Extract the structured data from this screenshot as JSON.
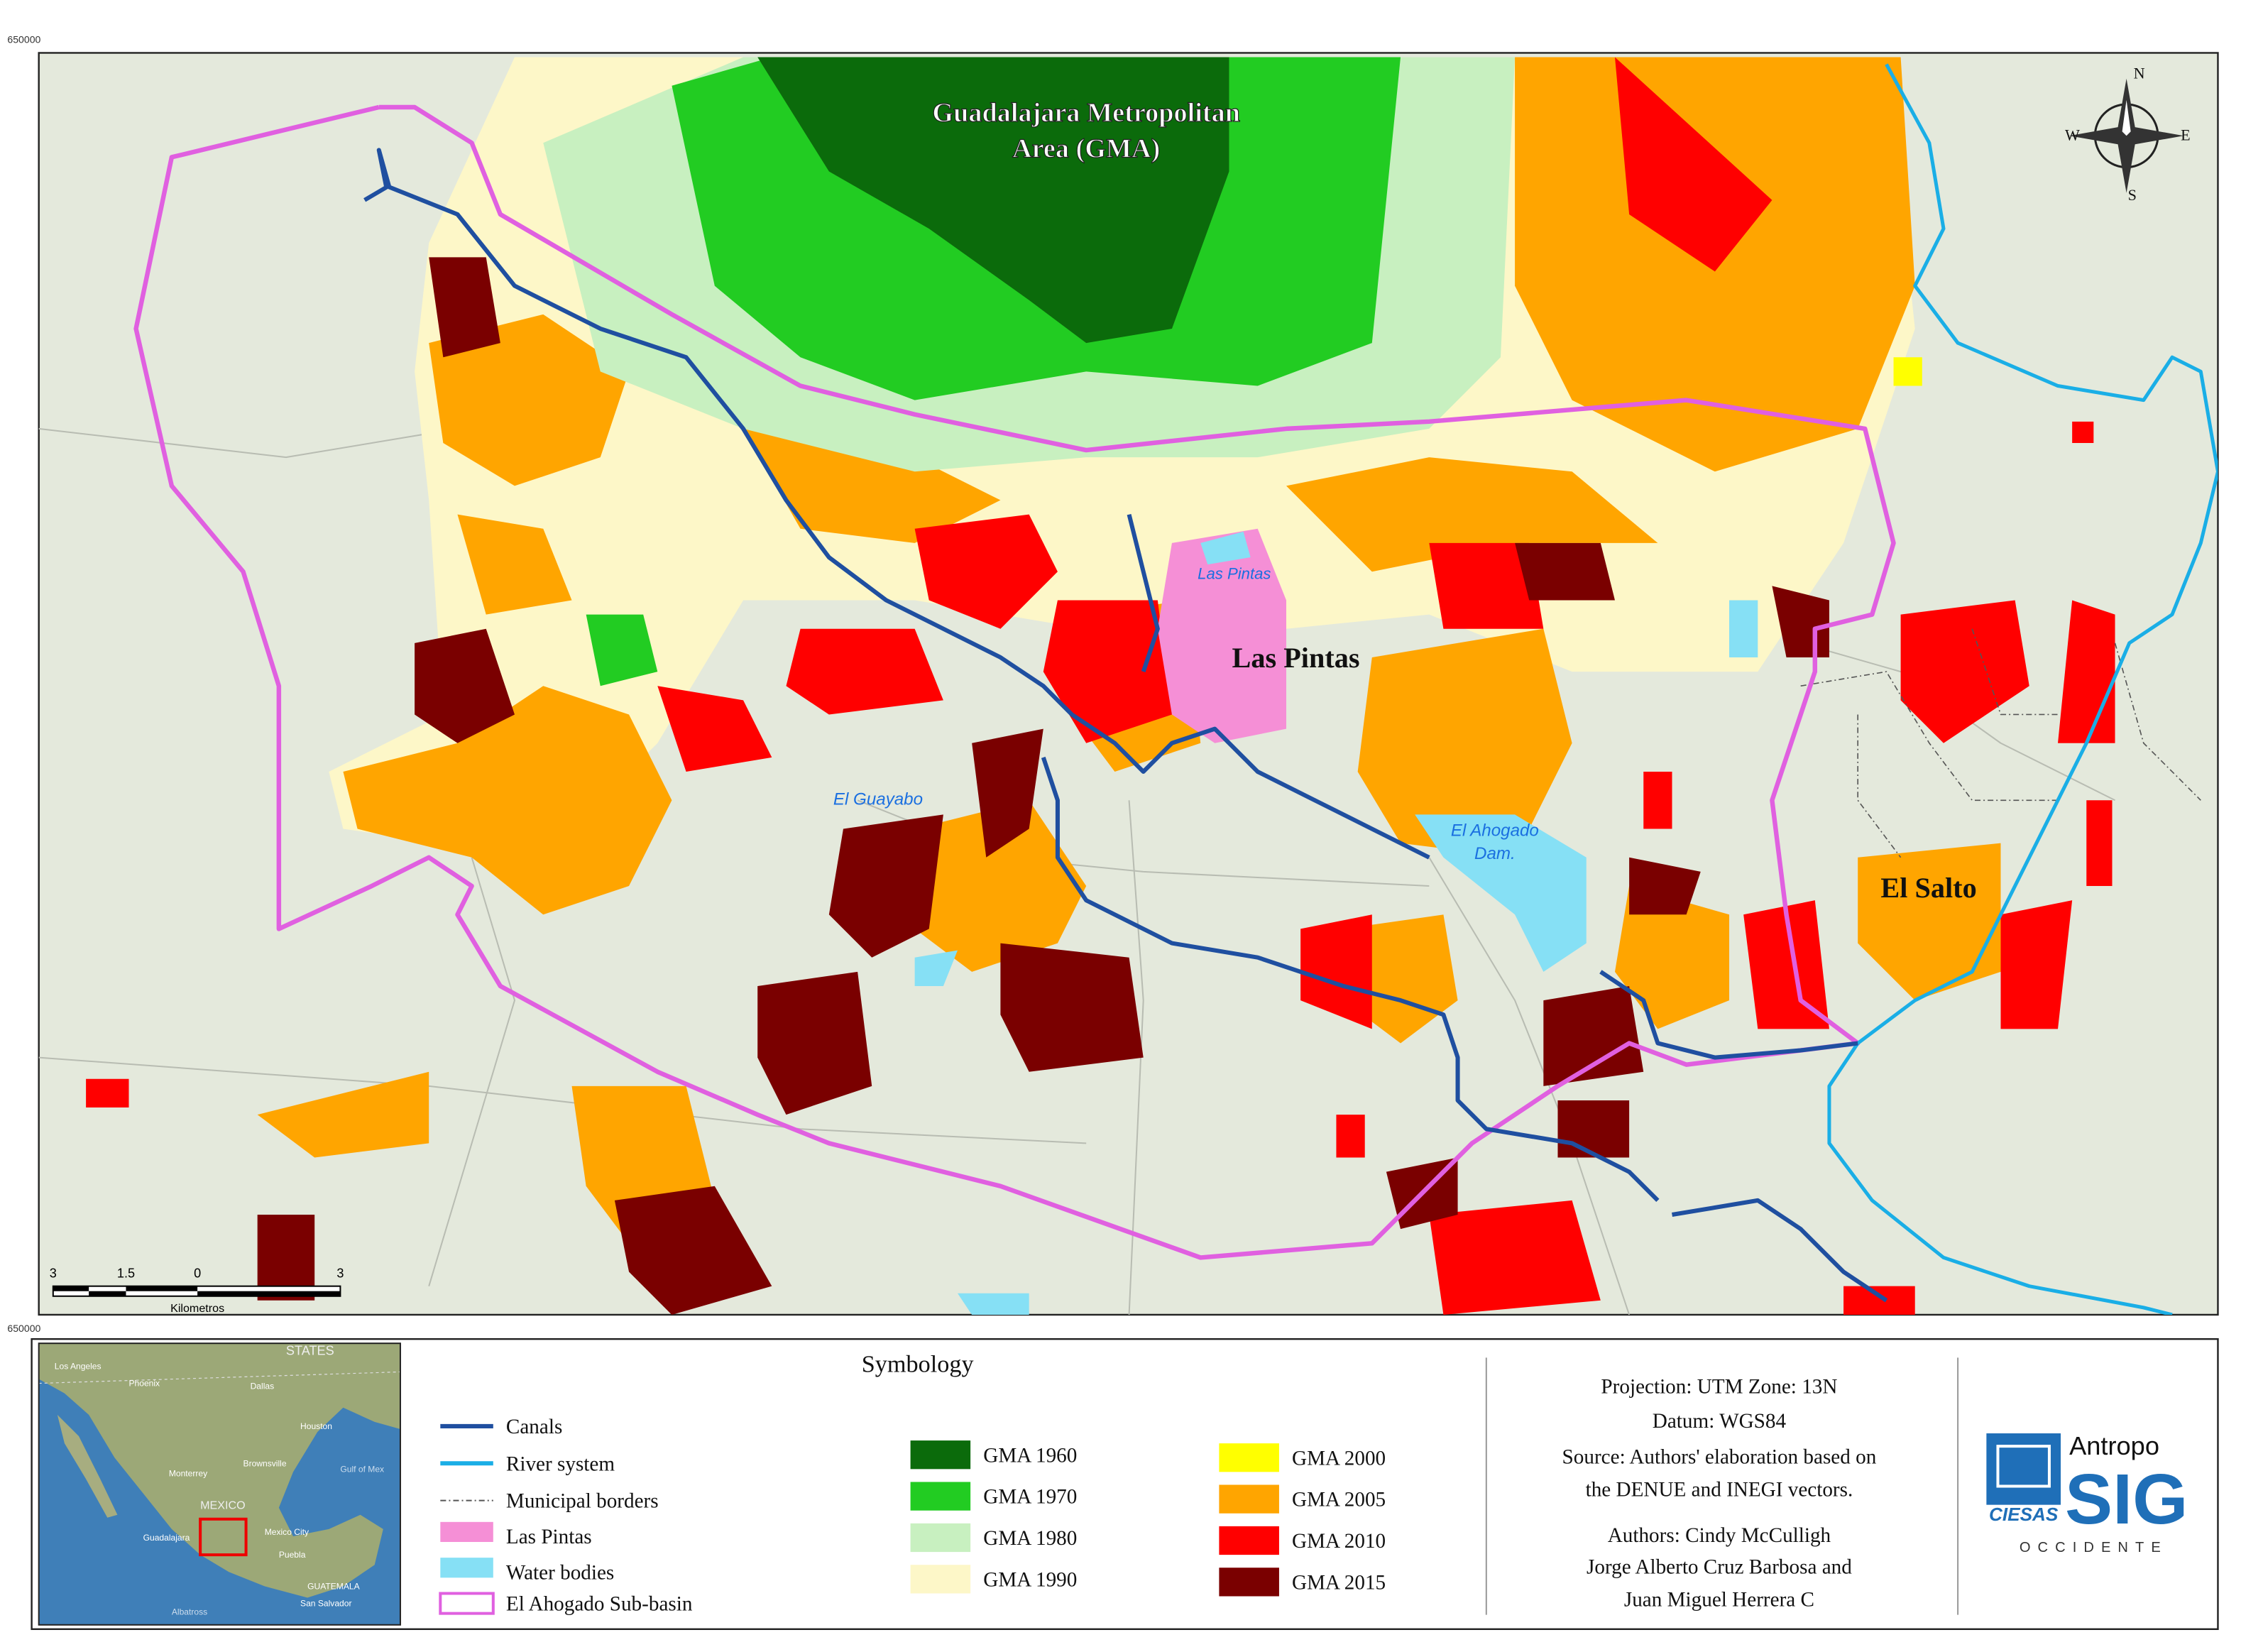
{
  "map": {
    "corner_labels": [
      "650000",
      "650000"
    ],
    "title_lines": [
      "Guadalajara Metropolitan",
      "Area (GMA)"
    ],
    "place_labels": {
      "las_pintas_water": "Las Pintas",
      "las_pintas": "Las Pintas",
      "el_guayabo": "El Guayabo",
      "el_ahogado": [
        "El Ahogado",
        "Dam."
      ],
      "el_salto": "El Salto"
    },
    "compass": {
      "n": "N",
      "s": "S",
      "w": "W",
      "e": "E"
    },
    "scale_bar": {
      "ticks": [
        "3",
        "1.5",
        "0",
        "3"
      ],
      "unit": "Kilometros"
    }
  },
  "inset": {
    "labels": [
      "STATES",
      "Los Angeles",
      "Phoenix",
      "Dallas",
      "Houston",
      "Monterrey",
      "Brownsville",
      "Gulf of Mex",
      "MEXICO",
      "Guadalajara",
      "Mexico City",
      "Puebla",
      "GUATEMALA",
      "San Salvador",
      "Albatross"
    ]
  },
  "legend": {
    "title": "Symbology",
    "columns": [
      [
        {
          "label": "Canals",
          "symbol": "line",
          "color": "#1f4fa0"
        },
        {
          "label": "River system",
          "symbol": "line",
          "color": "#1aaee6"
        },
        {
          "label": "Municipal borders",
          "symbol": "dash",
          "color": "#555555"
        },
        {
          "label": "Las Pintas",
          "symbol": "fill",
          "color": "#f58fd6"
        },
        {
          "label": "Water bodies",
          "symbol": "fill",
          "color": "#86e0f5"
        },
        {
          "label": "El Ahogado Sub-basin",
          "symbol": "outline",
          "color": "#e060e0"
        }
      ],
      [
        {
          "label": "GMA 1960",
          "symbol": "fill",
          "color": "#0b6b0b"
        },
        {
          "label": "GMA 1970",
          "symbol": "fill",
          "color": "#22cc22"
        },
        {
          "label": "GMA  1980",
          "symbol": "fill",
          "color": "#c8f0c0"
        },
        {
          "label": "GMA  1990",
          "symbol": "fill",
          "color": "#fdf7c8"
        }
      ],
      [
        {
          "label": "GMA 2000",
          "symbol": "fill",
          "color": "#ffff00"
        },
        {
          "label": "GMA 2005",
          "symbol": "fill",
          "color": "#ffa500"
        },
        {
          "label": "GMA 2010",
          "symbol": "fill",
          "color": "#ff0000"
        },
        {
          "label": "GMA 2015",
          "symbol": "fill",
          "color": "#7a0000"
        }
      ]
    ]
  },
  "info": {
    "lines": [
      "Projection: UTM  Zone: 13N",
      "Datum: WGS84",
      "Source: Authors' elaboration based on",
      "the DENUE and INEGI vectors.",
      "Authors: Cindy McCulligh",
      "Jorge Alberto Cruz Barbosa and",
      "Juan Miguel Herrera C"
    ]
  },
  "logo": {
    "ciesas": "CIESAS",
    "antropo": "Antropo",
    "sig": "SIG",
    "occidente": "OCCIDENTE"
  }
}
